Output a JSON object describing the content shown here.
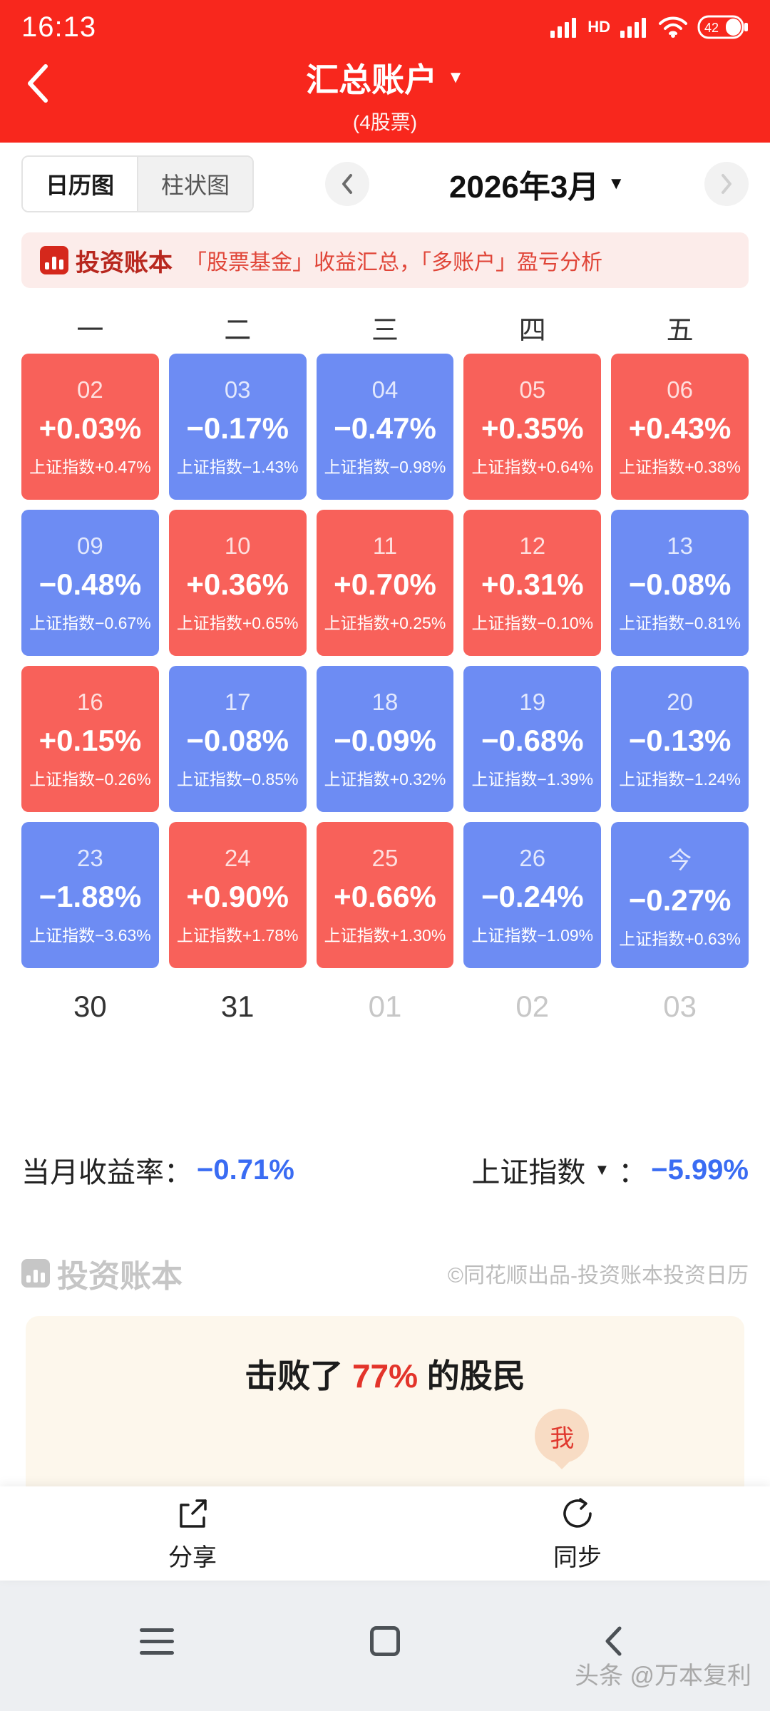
{
  "status_bar": {
    "time": "16:13",
    "hd": "HD",
    "battery": "42"
  },
  "header": {
    "title": "汇总账户",
    "subtitle": "(4股票)"
  },
  "icons": {
    "caret_down": "▼"
  },
  "toolbar": {
    "tabs": [
      {
        "label": "日历图"
      },
      {
        "label": "柱状图"
      }
    ],
    "month": "2026年3月"
  },
  "promo": {
    "brand": "投资账本",
    "text": "「股票基金」收益汇总，「多账户」盈亏分析"
  },
  "calendar": {
    "weekdays": [
      "一",
      "二",
      "三",
      "四",
      "五"
    ],
    "cells": [
      {
        "day": "02",
        "value": "+0.03%",
        "index": "上证指数+0.47%",
        "tone": "red"
      },
      {
        "day": "03",
        "value": "−0.17%",
        "index": "上证指数−1.43%",
        "tone": "blue"
      },
      {
        "day": "04",
        "value": "−0.47%",
        "index": "上证指数−0.98%",
        "tone": "blue"
      },
      {
        "day": "05",
        "value": "+0.35%",
        "index": "上证指数+0.64%",
        "tone": "red"
      },
      {
        "day": "06",
        "value": "+0.43%",
        "index": "上证指数+0.38%",
        "tone": "red"
      },
      {
        "day": "09",
        "value": "−0.48%",
        "index": "上证指数−0.67%",
        "tone": "blue"
      },
      {
        "day": "10",
        "value": "+0.36%",
        "index": "上证指数+0.65%",
        "tone": "red"
      },
      {
        "day": "11",
        "value": "+0.70%",
        "index": "上证指数+0.25%",
        "tone": "red"
      },
      {
        "day": "12",
        "value": "+0.31%",
        "index": "上证指数−0.10%",
        "tone": "red"
      },
      {
        "day": "13",
        "value": "−0.08%",
        "index": "上证指数−0.81%",
        "tone": "blue"
      },
      {
        "day": "16",
        "value": "+0.15%",
        "index": "上证指数−0.26%",
        "tone": "red"
      },
      {
        "day": "17",
        "value": "−0.08%",
        "index": "上证指数−0.85%",
        "tone": "blue"
      },
      {
        "day": "18",
        "value": "−0.09%",
        "index": "上证指数+0.32%",
        "tone": "blue"
      },
      {
        "day": "19",
        "value": "−0.68%",
        "index": "上证指数−1.39%",
        "tone": "blue"
      },
      {
        "day": "20",
        "value": "−0.13%",
        "index": "上证指数−1.24%",
        "tone": "blue"
      },
      {
        "day": "23",
        "value": "−1.88%",
        "index": "上证指数−3.63%",
        "tone": "blue"
      },
      {
        "day": "24",
        "value": "+0.90%",
        "index": "上证指数+1.78%",
        "tone": "red"
      },
      {
        "day": "25",
        "value": "+0.66%",
        "index": "上证指数+1.30%",
        "tone": "red"
      },
      {
        "day": "26",
        "value": "−0.24%",
        "index": "上证指数−1.09%",
        "tone": "blue"
      },
      {
        "day": "今",
        "value": "−0.27%",
        "index": "上证指数+0.63%",
        "tone": "blue"
      }
    ],
    "next_days": [
      {
        "label": "30",
        "muted": false
      },
      {
        "label": "31",
        "muted": false
      },
      {
        "label": "01",
        "muted": true
      },
      {
        "label": "02",
        "muted": true
      },
      {
        "label": "03",
        "muted": true
      }
    ]
  },
  "summary": {
    "month_label": "当月收益率：",
    "month_value": "−0.71%",
    "index_label": "上证指数",
    "index_colon": "：",
    "index_value": "−5.99%"
  },
  "credit": {
    "brand": "投资账本",
    "text": "©同花顺出品-投资账本投资日历"
  },
  "beat_card": {
    "prefix": "击败了 ",
    "percent": "77%",
    "suffix": " 的股民",
    "marker": "我",
    "progress_pct": 77
  },
  "action_bar": {
    "share": "分享",
    "sync": "同步"
  },
  "watermark": {
    "text": "头条 @万本复利"
  },
  "colors": {
    "header_red": "#f8271d",
    "cell_red": "#f8615a",
    "cell_blue": "#6d8cf3",
    "value_blue": "#3a6cf3",
    "bar_red": "#ef392d",
    "marker_bg": "#f8dcc4"
  }
}
